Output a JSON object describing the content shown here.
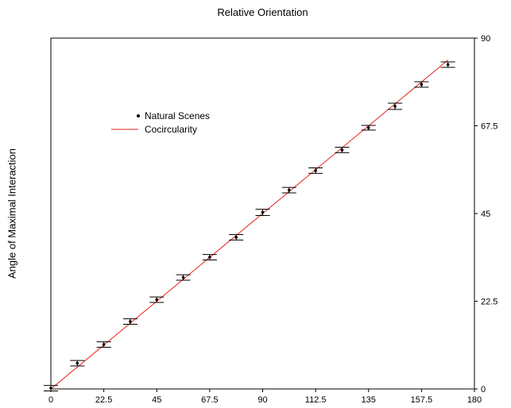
{
  "chart_data": {
    "type": "scatter",
    "title": "",
    "xlabel": "Relative Orientation",
    "ylabel": "Angle of Maximal Interaction",
    "xlim": [
      0,
      180
    ],
    "ylim": [
      0,
      90
    ],
    "xticks": [
      "0",
      "22.5",
      "45",
      "67.5",
      "90",
      "112.5",
      "135",
      "157.5",
      "180"
    ],
    "yticks": [
      "0",
      "22.5",
      "45",
      "67.5",
      "90"
    ],
    "grid": false,
    "legend_position": "upper-left",
    "colors": {
      "points": "#000000",
      "line": "#e8231c",
      "axes": "#000000"
    },
    "series": [
      {
        "name": "Natural Scenes",
        "kind": "points_with_errorbars",
        "x": [
          0,
          11.25,
          22.5,
          33.75,
          45,
          56.25,
          67.5,
          78.75,
          90,
          101.25,
          112.5,
          123.75,
          135,
          146.25,
          157.5,
          168.75
        ],
        "y": [
          0.2,
          6.6,
          11.4,
          17.3,
          22.9,
          28.6,
          33.8,
          38.9,
          45.3,
          51.0,
          56.0,
          61.3,
          67.0,
          72.5,
          78.1,
          83.2
        ],
        "yerr": [
          0.7,
          0.7,
          0.7,
          0.7,
          0.7,
          0.7,
          0.7,
          0.7,
          0.8,
          0.7,
          0.7,
          0.7,
          0.6,
          0.8,
          0.7,
          0.7
        ]
      },
      {
        "name": "Cocircularity",
        "kind": "line",
        "x": [
          0,
          168.75
        ],
        "y": [
          0,
          84.375
        ]
      }
    ]
  }
}
